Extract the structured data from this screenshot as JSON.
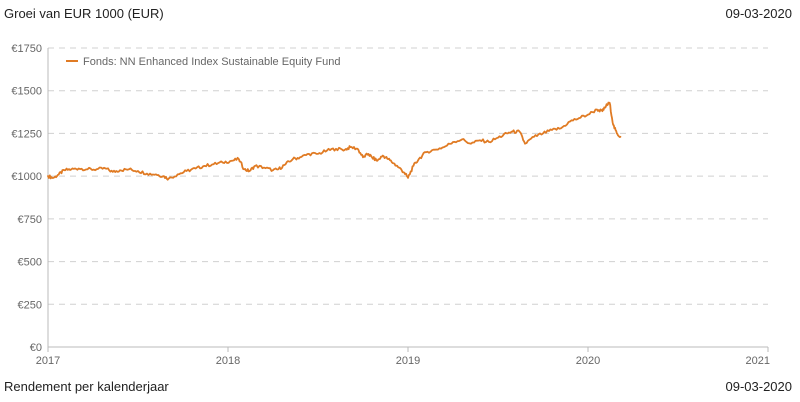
{
  "header": {
    "title": "Groei van EUR 1000 (EUR)",
    "date": "09-03-2020"
  },
  "footer": {
    "title": "Rendement per kalenderjaar",
    "date": "09-03-2020"
  },
  "chart_data": {
    "type": "line",
    "title": "Groei van EUR 1000 (EUR)",
    "xlabel": "",
    "ylabel": "",
    "xlim": [
      2017,
      2021
    ],
    "ylim": [
      0,
      1750
    ],
    "x_ticks": [
      "2017",
      "2018",
      "2019",
      "2020",
      "2021"
    ],
    "y_ticks": [
      "€0",
      "€250",
      "€500",
      "€750",
      "€1000",
      "€1250",
      "€1500",
      "€1750"
    ],
    "grid": true,
    "legend_position": "top-left",
    "line_color": "#e07b24",
    "series": [
      {
        "name": "Fonds: NN Enhanced Index Sustainable Equity Fund",
        "x": [
          2017.0,
          2017.03,
          2017.06,
          2017.09,
          2017.13,
          2017.17,
          2017.22,
          2017.27,
          2017.32,
          2017.36,
          2017.4,
          2017.45,
          2017.5,
          2017.55,
          2017.6,
          2017.64,
          2017.67,
          2017.72,
          2017.77,
          2017.82,
          2017.87,
          2017.92,
          2017.97,
          2018.02,
          2018.06,
          2018.09,
          2018.12,
          2018.15,
          2018.2,
          2018.25,
          2018.28,
          2018.32,
          2018.36,
          2018.4,
          2018.45,
          2018.5,
          2018.55,
          2018.6,
          2018.65,
          2018.68,
          2018.72,
          2018.75,
          2018.78,
          2018.8,
          2018.83,
          2018.86,
          2018.89,
          2018.92,
          2018.95,
          2018.98,
          2019.0,
          2019.03,
          2019.06,
          2019.1,
          2019.15,
          2019.2,
          2019.25,
          2019.3,
          2019.35,
          2019.4,
          2019.45,
          2019.5,
          2019.55,
          2019.58,
          2019.62,
          2019.65,
          2019.7,
          2019.75,
          2019.8,
          2019.85,
          2019.9,
          2019.95,
          2020.0,
          2020.05,
          2020.08,
          2020.1,
          2020.12,
          2020.14,
          2020.16,
          2020.18
        ],
        "values": [
          1000,
          990,
          1010,
          1035,
          1040,
          1045,
          1040,
          1040,
          1045,
          1025,
          1035,
          1040,
          1030,
          1015,
          1010,
          1000,
          985,
          1010,
          1030,
          1045,
          1060,
          1070,
          1080,
          1090,
          1100,
          1040,
          1030,
          1060,
          1050,
          1035,
          1040,
          1070,
          1100,
          1110,
          1130,
          1130,
          1150,
          1160,
          1155,
          1170,
          1160,
          1110,
          1130,
          1110,
          1090,
          1120,
          1100,
          1075,
          1050,
          1020,
          990,
          1060,
          1100,
          1140,
          1155,
          1170,
          1200,
          1215,
          1190,
          1210,
          1200,
          1225,
          1250,
          1260,
          1260,
          1190,
          1230,
          1250,
          1270,
          1280,
          1320,
          1340,
          1360,
          1390,
          1380,
          1410,
          1430,
          1300,
          1250,
          1230
        ]
      }
    ]
  }
}
